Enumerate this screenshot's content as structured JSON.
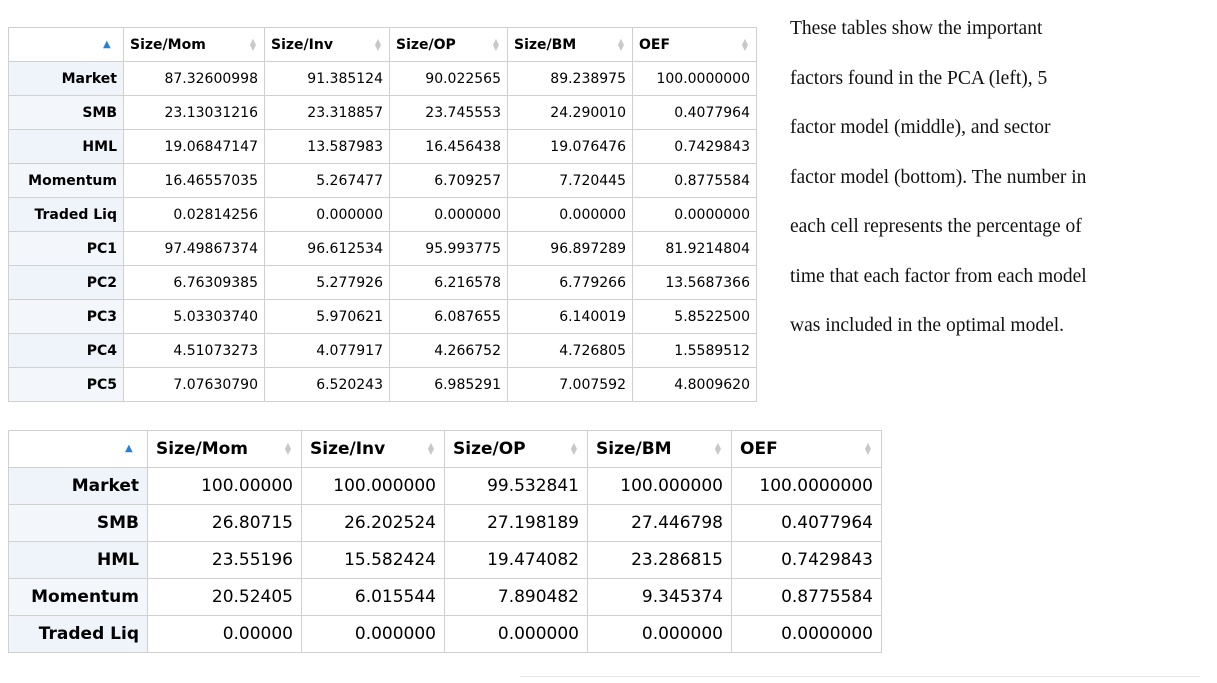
{
  "caption_lines": [
    "These tables show the important",
    "factors found in the PCA (left), 5",
    "factor model (middle), and sector",
    "factor model (bottom). The number in",
    "each cell represents the percentage of",
    "time that each factor from each model",
    "was included in the optimal model."
  ],
  "table1": {
    "columns": [
      "Size/Mom",
      "Size/Inv",
      "Size/OP",
      "Size/BM",
      "OEF"
    ],
    "rows": [
      {
        "label": "Market",
        "cells": [
          "87.32600998",
          "91.385124",
          "90.022565",
          "89.238975",
          "100.0000000"
        ]
      },
      {
        "label": "SMB",
        "cells": [
          "23.13031216",
          "23.318857",
          "23.745553",
          "24.290010",
          "0.4077964"
        ]
      },
      {
        "label": "HML",
        "cells": [
          "19.06847147",
          "13.587983",
          "16.456438",
          "19.076476",
          "0.7429843"
        ]
      },
      {
        "label": "Momentum",
        "cells": [
          "16.46557035",
          "5.267477",
          "6.709257",
          "7.720445",
          "0.8775584"
        ]
      },
      {
        "label": "Traded Liq",
        "cells": [
          "0.02814256",
          "0.000000",
          "0.000000",
          "0.000000",
          "0.0000000"
        ]
      },
      {
        "label": "PC1",
        "cells": [
          "97.49867374",
          "96.612534",
          "95.993775",
          "96.897289",
          "81.9214804"
        ]
      },
      {
        "label": "PC2",
        "cells": [
          "6.76309385",
          "5.277926",
          "6.216578",
          "6.779266",
          "13.5687366"
        ]
      },
      {
        "label": "PC3",
        "cells": [
          "5.03303740",
          "5.970621",
          "6.087655",
          "6.140019",
          "5.8522500"
        ]
      },
      {
        "label": "PC4",
        "cells": [
          "4.51073273",
          "4.077917",
          "4.266752",
          "4.726805",
          "1.5589512"
        ]
      },
      {
        "label": "PC5",
        "cells": [
          "7.07630790",
          "6.520243",
          "6.985291",
          "7.007592",
          "4.8009620"
        ]
      }
    ]
  },
  "table2": {
    "columns": [
      "Size/Mom",
      "Size/Inv",
      "Size/OP",
      "Size/BM",
      "OEF"
    ],
    "rows": [
      {
        "label": "Market",
        "cells": [
          "100.00000",
          "100.000000",
          "99.532841",
          "100.000000",
          "100.0000000"
        ]
      },
      {
        "label": "SMB",
        "cells": [
          "26.80715",
          "26.202524",
          "27.198189",
          "27.446798",
          "0.4077964"
        ]
      },
      {
        "label": "HML",
        "cells": [
          "23.55196",
          "15.582424",
          "19.474082",
          "23.286815",
          "0.7429843"
        ]
      },
      {
        "label": "Momentum",
        "cells": [
          "20.52405",
          "6.015544",
          "7.890482",
          "9.345374",
          "0.8775584"
        ]
      },
      {
        "label": "Traded Liq",
        "cells": [
          "0.00000",
          "0.000000",
          "0.000000",
          "0.000000",
          "0.0000000"
        ]
      }
    ]
  },
  "colors": {
    "sort_active": "#2a7fd4",
    "sort_inactive": "#c8c8c8",
    "border": "#d0d0d0"
  },
  "icons": {
    "sort_active": "sort-ascending-icon",
    "sort_inactive": "sort-both-icon"
  }
}
